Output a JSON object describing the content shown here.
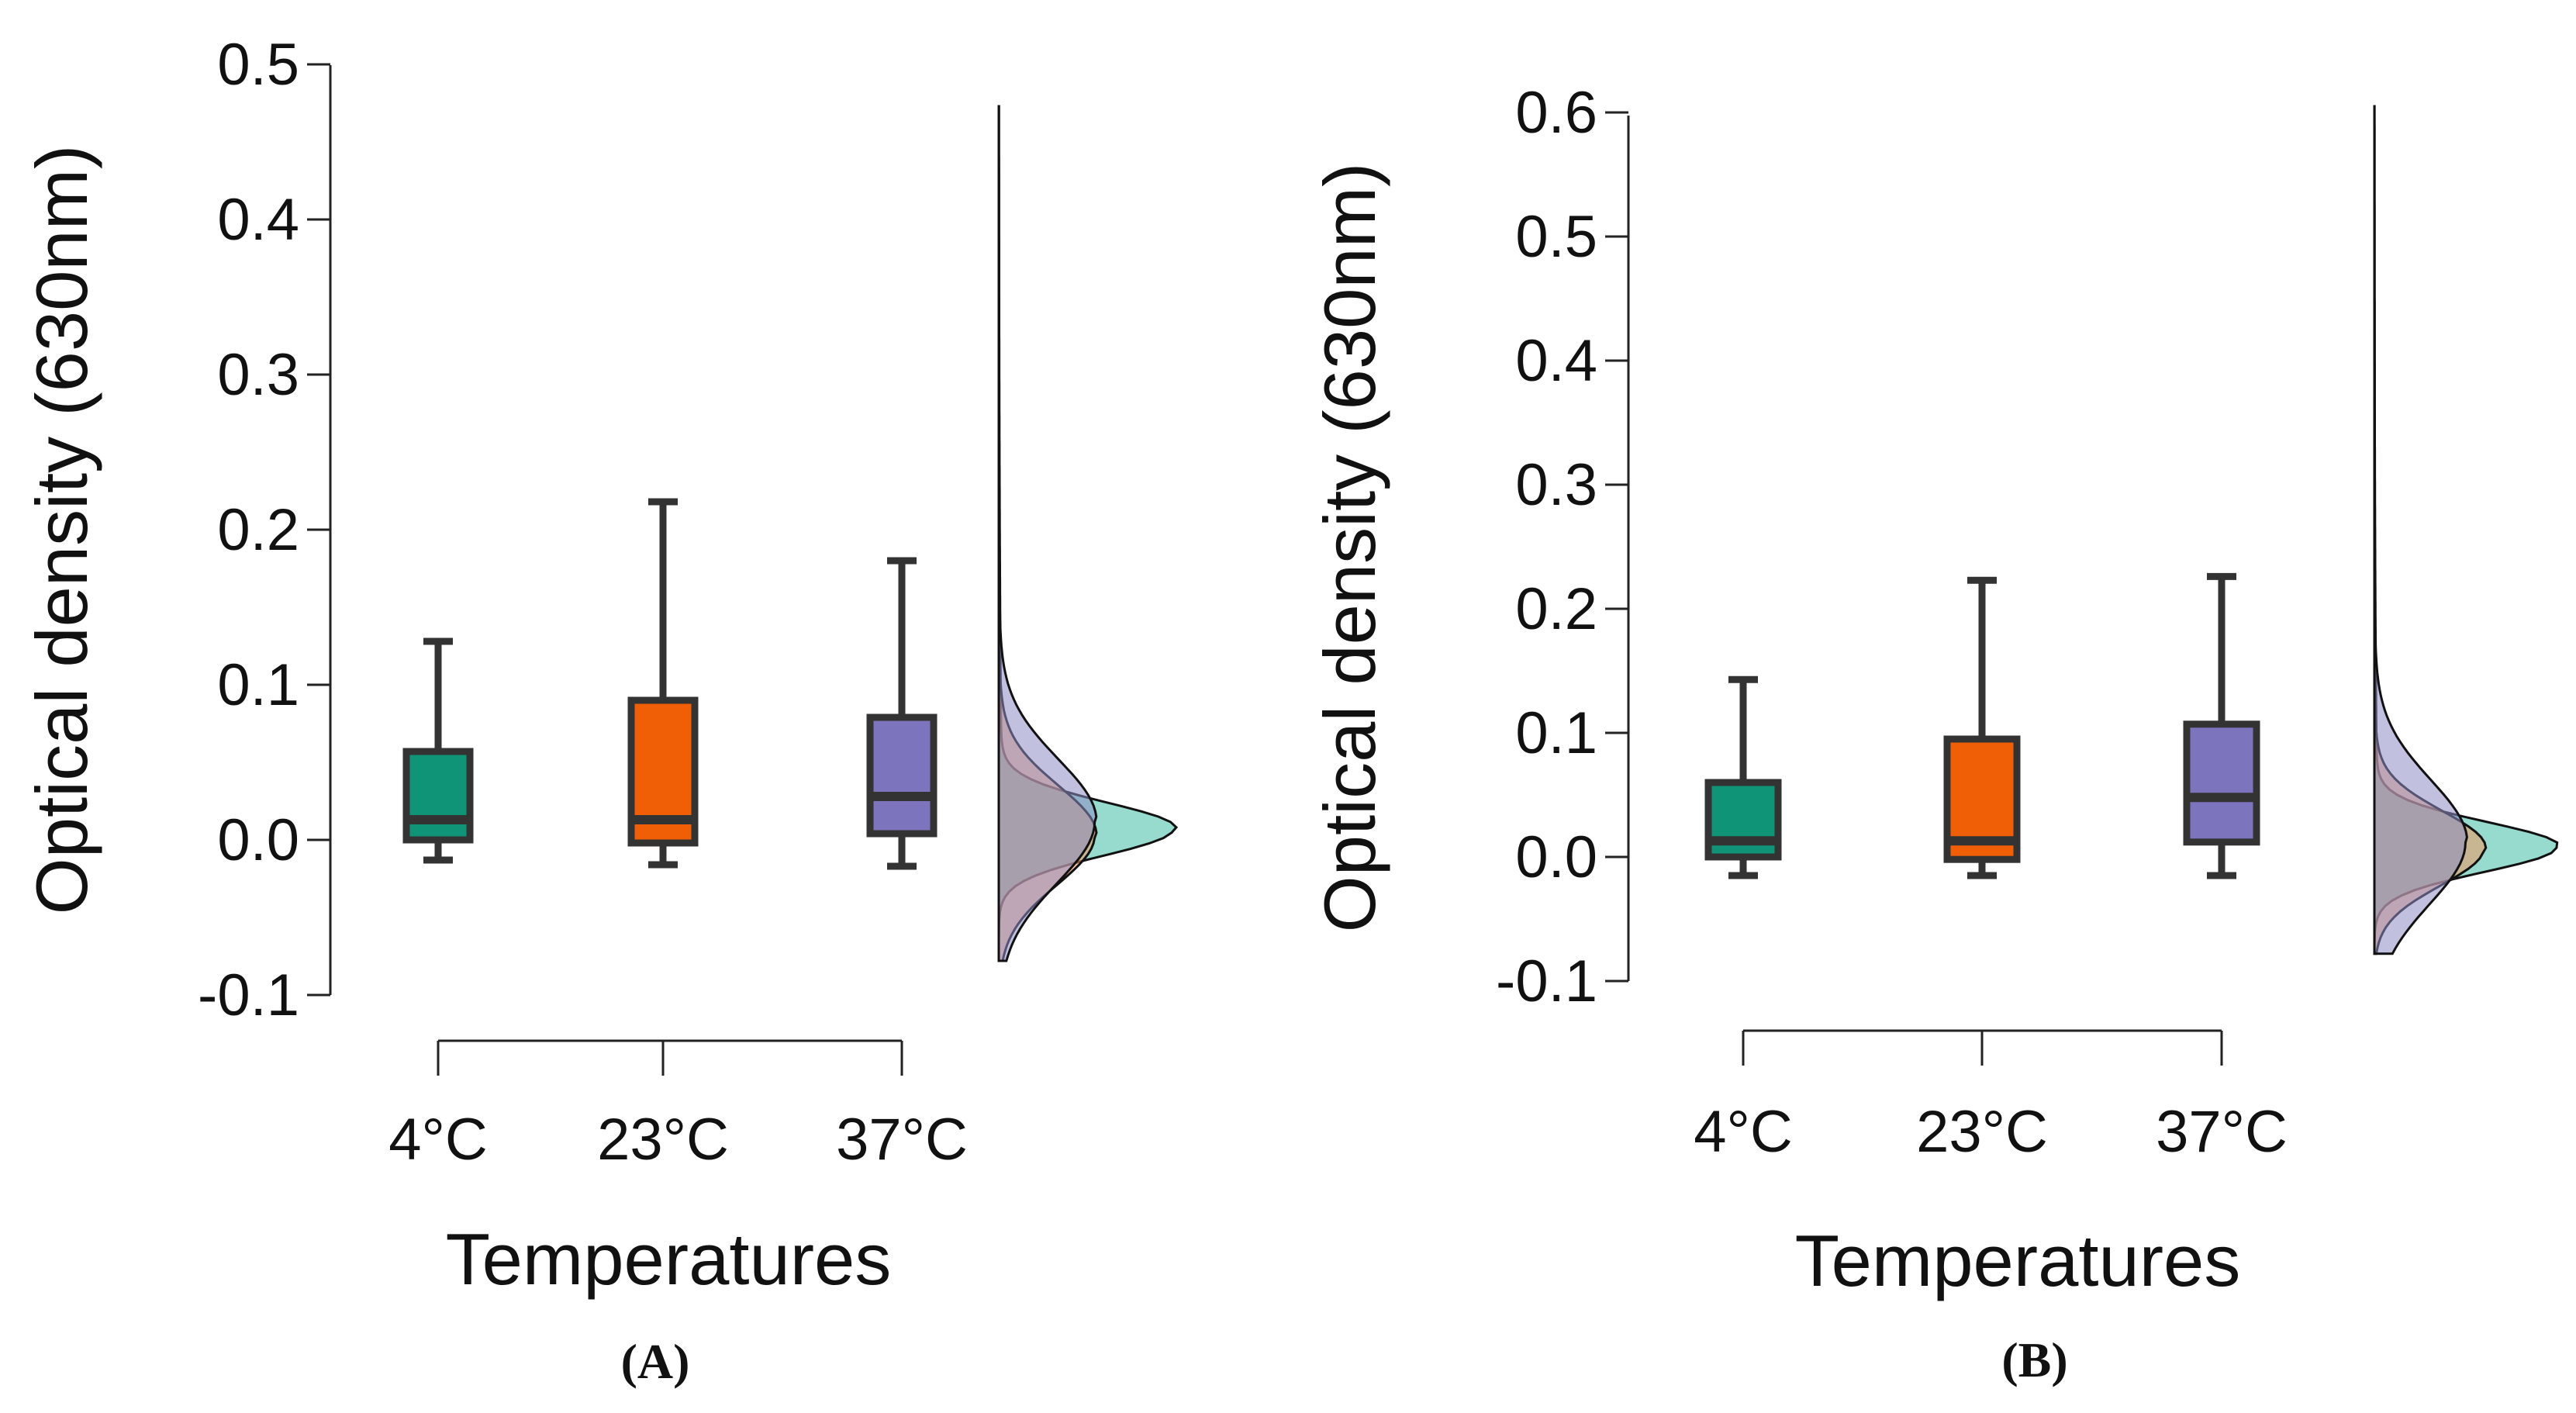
{
  "chart_data": [
    {
      "panel": "(A)",
      "type": "raincloud-boxplot",
      "xlabel": "Temperatures",
      "ylabel": "Optical density (630nm)",
      "ylim": [
        -0.1,
        0.5
      ],
      "yticks": [
        "-0.1",
        "0.0",
        "0.1",
        "0.2",
        "0.3",
        "0.4",
        "0.5"
      ],
      "categories": [
        "4°C",
        "23°C",
        "37°C"
      ],
      "colors": [
        "#0f9477",
        "#f05f06",
        "#7c74bc"
      ],
      "grid": false,
      "legend": "none",
      "boxes": [
        {
          "category": "4°C",
          "min": -0.013,
          "q1": 0.0,
          "median": 0.013,
          "q3": 0.057,
          "max": 0.128
        },
        {
          "category": "23°C",
          "min": -0.016,
          "q1": -0.002,
          "median": 0.013,
          "q3": 0.09,
          "max": 0.218
        },
        {
          "category": "37°C",
          "min": -0.017,
          "q1": 0.004,
          "median": 0.028,
          "q3": 0.079,
          "max": 0.18
        }
      ],
      "density_range": [
        -0.078,
        0.473
      ],
      "densities": [
        {
          "category": "4°C",
          "color": "#3fbea6",
          "peak": 0.007,
          "sd": 0.017,
          "height": 1.0
        },
        {
          "category": "23°C",
          "color": "#f3955e",
          "peak": 0.003,
          "sd": 0.032,
          "height": 0.55
        },
        {
          "category": "37°C",
          "color": "#8e8cc4",
          "peak": 0.012,
          "sd": 0.04,
          "height": 0.55
        }
      ]
    },
    {
      "panel": "(B)",
      "type": "raincloud-boxplot",
      "xlabel": "Temperatures",
      "ylabel": "Optical density (630nm)",
      "ylim": [
        -0.1,
        0.6
      ],
      "yticks": [
        "-0.1",
        "0.0",
        "0.1",
        "0.2",
        "0.3",
        "0.4",
        "0.5",
        "0.6"
      ],
      "categories": [
        "4°C",
        "23°C",
        "37°C"
      ],
      "colors": [
        "#0f9477",
        "#f05f06",
        "#7c74bc"
      ],
      "grid": false,
      "legend": "none",
      "boxes": [
        {
          "category": "4°C",
          "min": -0.015,
          "q1": 0.0,
          "median": 0.013,
          "q3": 0.06,
          "max": 0.143
        },
        {
          "category": "23°C",
          "min": -0.015,
          "q1": -0.002,
          "median": 0.013,
          "q3": 0.095,
          "max": 0.223
        },
        {
          "category": "37°C",
          "min": -0.015,
          "q1": 0.012,
          "median": 0.048,
          "q3": 0.107,
          "max": 0.226
        }
      ],
      "density_range": [
        -0.078,
        0.605
      ],
      "densities": [
        {
          "category": "4°C",
          "color": "#3fbea6",
          "peak": 0.008,
          "sd": 0.02,
          "height": 1.0
        },
        {
          "category": "23°C",
          "color": "#f3955e",
          "peak": 0.007,
          "sd": 0.03,
          "height": 0.6
        },
        {
          "category": "37°C",
          "color": "#8e8cc4",
          "peak": 0.012,
          "sd": 0.05,
          "height": 0.5
        }
      ]
    }
  ]
}
